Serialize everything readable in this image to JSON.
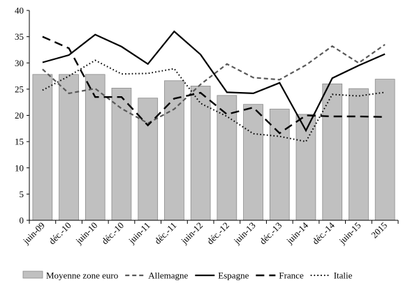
{
  "chart_data": {
    "type": "bar",
    "categories": [
      "juin-09",
      "déc.-10",
      "juin-10",
      "déc.-10",
      "juin-11",
      "déc.-11",
      "juin-12",
      "déc.-12",
      "juin-13",
      "déc.-13",
      "juin-14",
      "déc.-14",
      "juin-15",
      "2015"
    ],
    "ylim": [
      0,
      40
    ],
    "yticks": [
      0,
      5,
      10,
      15,
      20,
      25,
      30,
      35,
      40
    ],
    "grid": false,
    "legend_position": "bottom",
    "series": [
      {
        "name": "Moyenne zone euro",
        "type": "bar",
        "color": "#c0c0c0",
        "values": [
          27.8,
          27.8,
          27.8,
          25.2,
          23.3,
          26.6,
          25.6,
          23.8,
          22.1,
          21.2,
          20.2,
          26.0,
          25.1,
          26.9
        ]
      },
      {
        "name": "Allemagne",
        "type": "line",
        "style": "dashed",
        "color": "#595959",
        "values": [
          28.8,
          24.2,
          25.1,
          21.3,
          18.5,
          21.2,
          25.9,
          29.8,
          27.2,
          26.8,
          29.6,
          33.2,
          30.0,
          33.5
        ]
      },
      {
        "name": "Espagne",
        "type": "line",
        "style": "solid",
        "color": "#000000",
        "values": [
          30.1,
          31.5,
          35.4,
          33.1,
          29.8,
          36.0,
          31.6,
          24.4,
          24.2,
          26.2,
          17.1,
          27.1,
          29.5,
          31.7
        ]
      },
      {
        "name": "France",
        "type": "line",
        "style": "longdash",
        "color": "#000000",
        "values": [
          35.0,
          32.8,
          23.5,
          23.5,
          18.1,
          23.2,
          24.3,
          20.2,
          21.5,
          16.6,
          20.0,
          19.8,
          19.8,
          19.7
        ]
      },
      {
        "name": "Italie",
        "type": "line",
        "style": "dotted",
        "color": "#000000",
        "values": [
          24.8,
          27.5,
          30.5,
          27.9,
          28.0,
          28.9,
          22.3,
          19.8,
          16.5,
          16.0,
          15.0,
          24.0,
          23.7,
          24.4
        ]
      }
    ]
  }
}
